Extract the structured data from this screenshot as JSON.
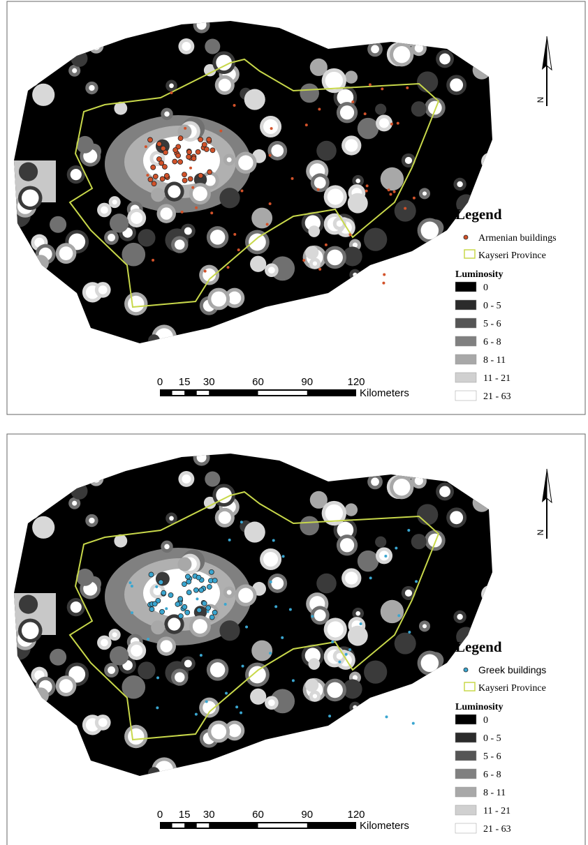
{
  "panels": [
    {
      "north": "N",
      "legend": {
        "title": "Legend",
        "point_label": "Armenian buildings",
        "point_color": "#d2522a",
        "boundary_label": "Kayseri Province",
        "boundary_color": "#c8d84a",
        "luminosity_title": "Luminosity",
        "classes": [
          {
            "label": "0",
            "color": "#000000"
          },
          {
            "label": "0 - 5",
            "color": "#2b2b2b"
          },
          {
            "label": "5 - 6",
            "color": "#555555"
          },
          {
            "label": "6 - 8",
            "color": "#808080"
          },
          {
            "label": "8 - 11",
            "color": "#a8a8a8"
          },
          {
            "label": "11 - 21",
            "color": "#d0d0d0"
          },
          {
            "label": "21 - 63",
            "color": "#ffffff"
          }
        ]
      },
      "scale": {
        "ticks": [
          0,
          15,
          30,
          60,
          90,
          120
        ],
        "unit": "Kilometers"
      }
    },
    {
      "north": "N",
      "legend": {
        "title": "Legend",
        "point_label": "Greek buildings",
        "point_color": "#3aa6d0",
        "boundary_label": "Kayseri Province",
        "boundary_color": "#c8d84a",
        "luminosity_title": "Luminosity",
        "classes": [
          {
            "label": "0",
            "color": "#000000"
          },
          {
            "label": "0 - 5",
            "color": "#2b2b2b"
          },
          {
            "label": "5 - 6",
            "color": "#555555"
          },
          {
            "label": "6 - 8",
            "color": "#808080"
          },
          {
            "label": "8 - 11",
            "color": "#a8a8a8"
          },
          {
            "label": "11 - 21",
            "color": "#d0d0d0"
          },
          {
            "label": "21 - 63",
            "color": "#ffffff"
          }
        ]
      },
      "scale": {
        "ticks": [
          0,
          15,
          30,
          60,
          90,
          120
        ],
        "unit": "Kilometers"
      }
    }
  ]
}
